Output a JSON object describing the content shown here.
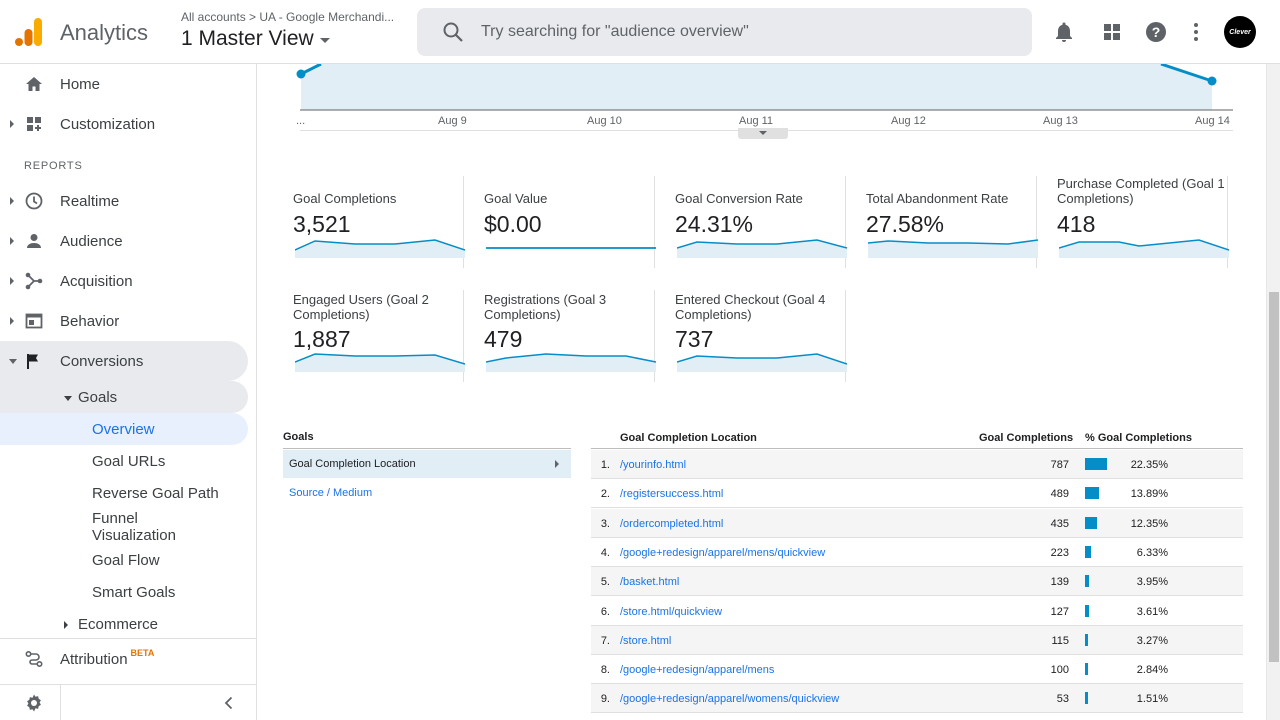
{
  "header": {
    "app_name": "Analytics",
    "breadcrumb": "All accounts  >  UA - Google Merchandi...",
    "view_name": "1 Master View",
    "search_placeholder": "Try searching for \"audience overview\"",
    "avatar_text": "Clever"
  },
  "sidebar": {
    "home": "Home",
    "customization": "Customization",
    "reports_label": "REPORTS",
    "realtime": "Realtime",
    "audience": "Audience",
    "acquisition": "Acquisition",
    "behavior": "Behavior",
    "conversions": "Conversions",
    "goals": "Goals",
    "overview": "Overview",
    "goal_urls": "Goal URLs",
    "reverse_goal_path": "Reverse Goal Path",
    "funnel_visualization_1": "Funnel",
    "funnel_visualization_2": "Visualization",
    "goal_flow": "Goal Flow",
    "smart_goals": "Smart Goals",
    "ecommerce": "Ecommerce",
    "attribution": "Attribution",
    "attribution_badge": "BETA"
  },
  "chart": {
    "x_labels": [
      "...",
      "Aug 9",
      "Aug 10",
      "Aug 11",
      "Aug 12",
      "Aug 13",
      "Aug 14"
    ]
  },
  "metrics": [
    {
      "title": "Goal Completions",
      "value": "3,521"
    },
    {
      "title": "Goal Value",
      "value": "$0.00"
    },
    {
      "title": "Goal Conversion Rate",
      "value": "24.31%"
    },
    {
      "title": "Total Abandonment Rate",
      "value": "27.58%"
    },
    {
      "title": "Purchase Completed (Goal 1 Completions)",
      "value": "418"
    },
    {
      "title": "Engaged Users (Goal 2 Completions)",
      "value": "1,887"
    },
    {
      "title": "Registrations (Goal 3 Completions)",
      "value": "479"
    },
    {
      "title": "Entered Checkout (Goal 4 Completions)",
      "value": "737"
    }
  ],
  "goals_panel": {
    "header": "Goals",
    "selected": "Goal Completion Location",
    "alternate": "Source / Medium"
  },
  "table": {
    "col_location": "Goal Completion Location",
    "col_completions": "Goal Completions",
    "col_pct": "% Goal Completions",
    "rows": [
      {
        "n": "1.",
        "location": "/yourinfo.html",
        "completions": "787",
        "pct": "22.35%",
        "share": 0.2235
      },
      {
        "n": "2.",
        "location": "/registersuccess.html",
        "completions": "489",
        "pct": "13.89%",
        "share": 0.1389
      },
      {
        "n": "3.",
        "location": "/ordercompleted.html",
        "completions": "435",
        "pct": "12.35%",
        "share": 0.1235
      },
      {
        "n": "4.",
        "location": "/google+redesign/apparel/mens/quickview",
        "completions": "223",
        "pct": "6.33%",
        "share": 0.0633
      },
      {
        "n": "5.",
        "location": "/basket.html",
        "completions": "139",
        "pct": "3.95%",
        "share": 0.0395
      },
      {
        "n": "6.",
        "location": "/store.html/quickview",
        "completions": "127",
        "pct": "3.61%",
        "share": 0.0361
      },
      {
        "n": "7.",
        "location": "/store.html",
        "completions": "115",
        "pct": "3.27%",
        "share": 0.0327
      },
      {
        "n": "8.",
        "location": "/google+redesign/apparel/mens",
        "completions": "100",
        "pct": "2.84%",
        "share": 0.0284
      },
      {
        "n": "9.",
        "location": "/google+redesign/apparel/womens/quickview",
        "completions": "53",
        "pct": "1.51%",
        "share": 0.0151
      }
    ]
  },
  "colors": {
    "accent": "#1a73e8",
    "chart_line": "#058dc7",
    "chart_fill": "#e1eef6",
    "logo_orange": "#f9ab00",
    "logo_dark_orange": "#e37400"
  }
}
